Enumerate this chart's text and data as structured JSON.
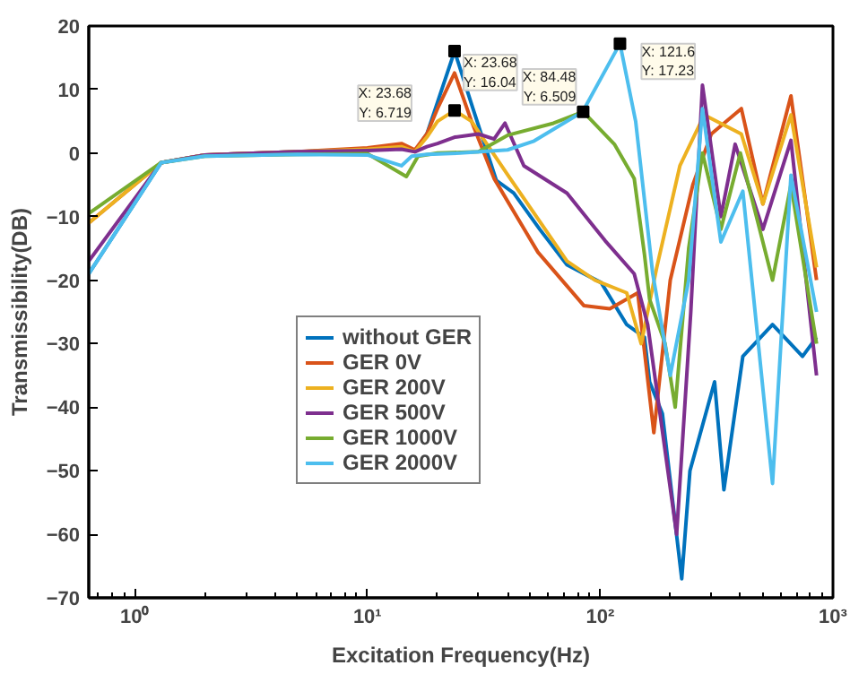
{
  "chart_data": {
    "type": "line",
    "xlabel": "Excitation Frequency(Hz)",
    "ylabel": "Transmissibility(DB)",
    "log": "x",
    "xlim": [
      0.635,
      1000
    ],
    "xticks": [
      {
        "value": 1,
        "label": "10⁰"
      },
      {
        "value": 10,
        "label": "10¹"
      },
      {
        "value": 100,
        "label": "10²"
      },
      {
        "value": 1000,
        "label": "10³"
      }
    ],
    "ylim": [
      -70,
      20
    ],
    "yticks": [
      -70,
      -60,
      -50,
      -40,
      -30,
      -20,
      -10,
      0,
      10,
      20
    ],
    "grid": false,
    "legend": "bottom left",
    "line_style": "solid",
    "marker": "none",
    "series": [
      {
        "name": "without GER",
        "color": "#0072bd",
        "x": [
          0.635,
          1.3,
          2,
          5,
          10,
          14,
          16,
          18,
          20,
          23.68,
          28.4,
          35.8,
          42.5,
          55,
          72,
          101,
          130,
          155,
          163,
          185,
          224,
          243,
          310,
          340,
          410,
          550,
          740,
          850
        ],
        "values": [
          -19,
          -1.5,
          -0.3,
          0.2,
          0.5,
          1.2,
          0.3,
          3,
          8,
          16.04,
          7,
          -4.3,
          -6.3,
          -12,
          -17.6,
          -20.4,
          -27,
          -29,
          -36,
          -41,
          -67,
          -50,
          -36,
          -53,
          -32,
          -27,
          -32,
          -29
        ]
      },
      {
        "name": "GER 0V",
        "color": "#d95319",
        "x": [
          0.635,
          1.3,
          2,
          5,
          10,
          14,
          16,
          18,
          20,
          23.68,
          28,
          35,
          54,
          85,
          110,
          145,
          170,
          200,
          250,
          300,
          404,
          500,
          660,
          850
        ],
        "values": [
          -11,
          -1.5,
          -0.3,
          0.2,
          0.8,
          1.5,
          0.5,
          3,
          7,
          12.6,
          5,
          -4,
          -15.6,
          -24,
          -24.5,
          -22,
          -44,
          -20,
          -5,
          3,
          7,
          -8,
          9,
          -20
        ]
      },
      {
        "name": "GER 200V",
        "color": "#edb120",
        "x": [
          0.635,
          1.3,
          2,
          5,
          10,
          14,
          16,
          18,
          20,
          23.68,
          28,
          40,
          72,
          95,
          130,
          150,
          175,
          220,
          280,
          404,
          500,
          660,
          850
        ],
        "values": [
          -11,
          -1.5,
          -0.3,
          0.2,
          0.6,
          1.0,
          0.2,
          2.5,
          5,
          6.719,
          5,
          -3.4,
          -17,
          -20,
          -22,
          -30,
          -18,
          -2,
          6,
          3,
          -8,
          6,
          -18
        ]
      },
      {
        "name": "GER 500V",
        "color": "#7e2f8e",
        "x": [
          0.635,
          1.3,
          2,
          5,
          10,
          14,
          16,
          18,
          20,
          23.68,
          30,
          35,
          39,
          47,
          72,
          105,
          140,
          160,
          213,
          245,
          275,
          330,
          380,
          500,
          660,
          850
        ],
        "values": [
          -17,
          -1.5,
          -0.3,
          0.2,
          0.4,
          0.6,
          0.2,
          1,
          1.5,
          2.5,
          3,
          2.2,
          4.7,
          -2,
          -6.3,
          -13.8,
          -19,
          -27,
          -60,
          -25,
          10.7,
          -10,
          1.4,
          -12,
          2,
          -35
        ]
      },
      {
        "name": "GER 1000V",
        "color": "#77ac30",
        "x": [
          0.635,
          1.3,
          2,
          5,
          10,
          14.7,
          16.5,
          20,
          30,
          40,
          63,
          84.48,
          115,
          140,
          155,
          163,
          190,
          210,
          240,
          275,
          330,
          400,
          550,
          660,
          850
        ],
        "values": [
          -9.5,
          -1.5,
          -0.5,
          -0.2,
          -0.1,
          -3.7,
          -0.5,
          0,
          0.2,
          2.8,
          4.7,
          6.509,
          1.4,
          -4,
          -16,
          -23,
          -30,
          -40,
          -15,
          0,
          -12,
          0,
          -20,
          -5,
          -30
        ]
      },
      {
        "name": "GER 2000V",
        "color": "#4dbeee",
        "x": [
          0.635,
          1.3,
          2,
          5,
          10,
          14,
          15.5,
          18,
          25,
          40,
          52,
          84,
          121.6,
          142,
          155,
          168,
          200,
          240,
          275,
          330,
          410,
          550,
          660,
          850
        ],
        "values": [
          -19,
          -1.5,
          -0.5,
          -0.2,
          -0.3,
          -2,
          -0.5,
          -0.2,
          0,
          0.5,
          1.9,
          6.5,
          17.23,
          5,
          -7.4,
          -18.9,
          -35,
          -20,
          7,
          -14,
          -6,
          -52,
          -3.5,
          -25
        ]
      }
    ],
    "annotations": [
      {
        "text": "X: 23.68\nY: 16.04",
        "x": 23.68,
        "y": 16.04
      },
      {
        "text": "X: 23.68\nY: 6.719",
        "x": 23.68,
        "y": 6.719
      },
      {
        "text": "X: 84.48\nY: 6.509",
        "x": 84.48,
        "y": 6.509
      },
      {
        "text": "X: 121.6\nY: 17.23",
        "x": 121.6,
        "y": 17.23
      }
    ]
  }
}
